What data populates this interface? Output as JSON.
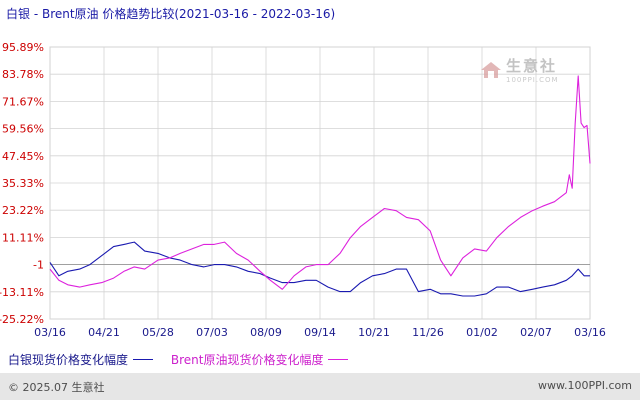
{
  "title": "白银 - Brent原油 价格趋势比较(2021-03-16 - 2022-03-16)",
  "watermark": {
    "main": "生意社",
    "sub": "100PPI.COM"
  },
  "footer": {
    "left": "© 2025.07 生意社",
    "right": "www.100PPI.com"
  },
  "colors": {
    "silver": "#1a1ab0",
    "brent": "#dd22dd",
    "grid": "#cccccc",
    "ytick": "#cc0000",
    "xtick": "#1a1a8c"
  },
  "chart_data": {
    "type": "line",
    "title": "白银 - Brent原油 价格趋势比较(2021-03-16 - 2022-03-16)",
    "xlabel": "",
    "ylabel": "",
    "y_tick_labels": [
      "95.89%",
      "83.78%",
      "71.67%",
      "59.56%",
      "47.45%",
      "35.33%",
      "23.22%",
      "11.11%",
      "-1",
      "-13.11%",
      "-25.22%"
    ],
    "y_tick_values": [
      95.89,
      83.78,
      71.67,
      59.56,
      47.45,
      35.33,
      23.22,
      11.11,
      -1,
      -13.11,
      -25.22
    ],
    "ylim": [
      -25.22,
      95.89
    ],
    "x_tick_labels": [
      "03/16",
      "04/21",
      "05/28",
      "07/03",
      "08/09",
      "09/14",
      "10/21",
      "11/26",
      "01/02",
      "02/07",
      "03/16"
    ],
    "x_range": [
      "2021-03-16",
      "2022-03-16"
    ],
    "grid": true,
    "legend_position": "bottom-left",
    "series": [
      {
        "name": "白银现货价格变化幅度",
        "color": "#1a1ab0",
        "x": [
          "2021-03-16",
          "2021-03-22",
          "2021-03-28",
          "2021-04-05",
          "2021-04-12",
          "2021-04-20",
          "2021-04-28",
          "2021-05-05",
          "2021-05-12",
          "2021-05-19",
          "2021-05-28",
          "2021-06-05",
          "2021-06-12",
          "2021-06-20",
          "2021-06-28",
          "2021-07-05",
          "2021-07-12",
          "2021-07-20",
          "2021-07-28",
          "2021-08-05",
          "2021-08-12",
          "2021-08-20",
          "2021-08-28",
          "2021-09-05",
          "2021-09-12",
          "2021-09-20",
          "2021-09-28",
          "2021-10-05",
          "2021-10-12",
          "2021-10-20",
          "2021-10-28",
          "2021-11-05",
          "2021-11-12",
          "2021-11-20",
          "2021-11-28",
          "2021-12-05",
          "2021-12-12",
          "2021-12-20",
          "2021-12-28",
          "2022-01-05",
          "2022-01-12",
          "2022-01-20",
          "2022-01-28",
          "2022-02-05",
          "2022-02-12",
          "2022-02-20",
          "2022-02-28",
          "2022-03-04",
          "2022-03-08",
          "2022-03-12",
          "2022-03-16"
        ],
        "values": [
          0,
          -6,
          -4,
          -3,
          -1,
          3,
          7,
          8,
          9,
          5,
          4,
          2,
          1,
          -1,
          -2,
          -1,
          -1,
          -2,
          -4,
          -5,
          -7,
          -9,
          -9,
          -8,
          -8,
          -11,
          -13,
          -13,
          -9,
          -6,
          -5,
          -3,
          -3,
          -13,
          -12,
          -14,
          -14,
          -15,
          -15,
          -14,
          -11,
          -11,
          -13,
          -12,
          -11,
          -10,
          -8,
          -6,
          -3,
          -6,
          -6
        ]
      },
      {
        "name": "Brent原油现货价格变化幅度",
        "color": "#dd22dd",
        "x": [
          "2021-03-16",
          "2021-03-22",
          "2021-03-28",
          "2021-04-05",
          "2021-04-12",
          "2021-04-20",
          "2021-04-28",
          "2021-05-05",
          "2021-05-12",
          "2021-05-19",
          "2021-05-28",
          "2021-06-05",
          "2021-06-12",
          "2021-06-20",
          "2021-06-28",
          "2021-07-05",
          "2021-07-12",
          "2021-07-20",
          "2021-07-28",
          "2021-08-05",
          "2021-08-12",
          "2021-08-20",
          "2021-08-28",
          "2021-09-05",
          "2021-09-12",
          "2021-09-20",
          "2021-09-28",
          "2021-10-05",
          "2021-10-12",
          "2021-10-20",
          "2021-10-28",
          "2021-11-05",
          "2021-11-12",
          "2021-11-20",
          "2021-11-28",
          "2021-12-05",
          "2021-12-12",
          "2021-12-20",
          "2021-12-28",
          "2022-01-05",
          "2022-01-12",
          "2022-01-20",
          "2022-01-28",
          "2022-02-05",
          "2022-02-12",
          "2022-02-20",
          "2022-02-28",
          "2022-03-02",
          "2022-03-04",
          "2022-03-06",
          "2022-03-08",
          "2022-03-10",
          "2022-03-12",
          "2022-03-14",
          "2022-03-16"
        ],
        "values": [
          -3,
          -8,
          -10,
          -11,
          -10,
          -9,
          -7,
          -4,
          -2,
          -3,
          1,
          2,
          4,
          6,
          8,
          8,
          9,
          4,
          1,
          -4,
          -8,
          -12,
          -6,
          -2,
          -1,
          -1,
          4,
          11,
          16,
          20,
          24,
          23,
          20,
          19,
          14,
          1,
          -6,
          2,
          6,
          5,
          11,
          16,
          20,
          23,
          25,
          27,
          31,
          39,
          33,
          62,
          83,
          62,
          60,
          61,
          44
        ]
      }
    ]
  }
}
